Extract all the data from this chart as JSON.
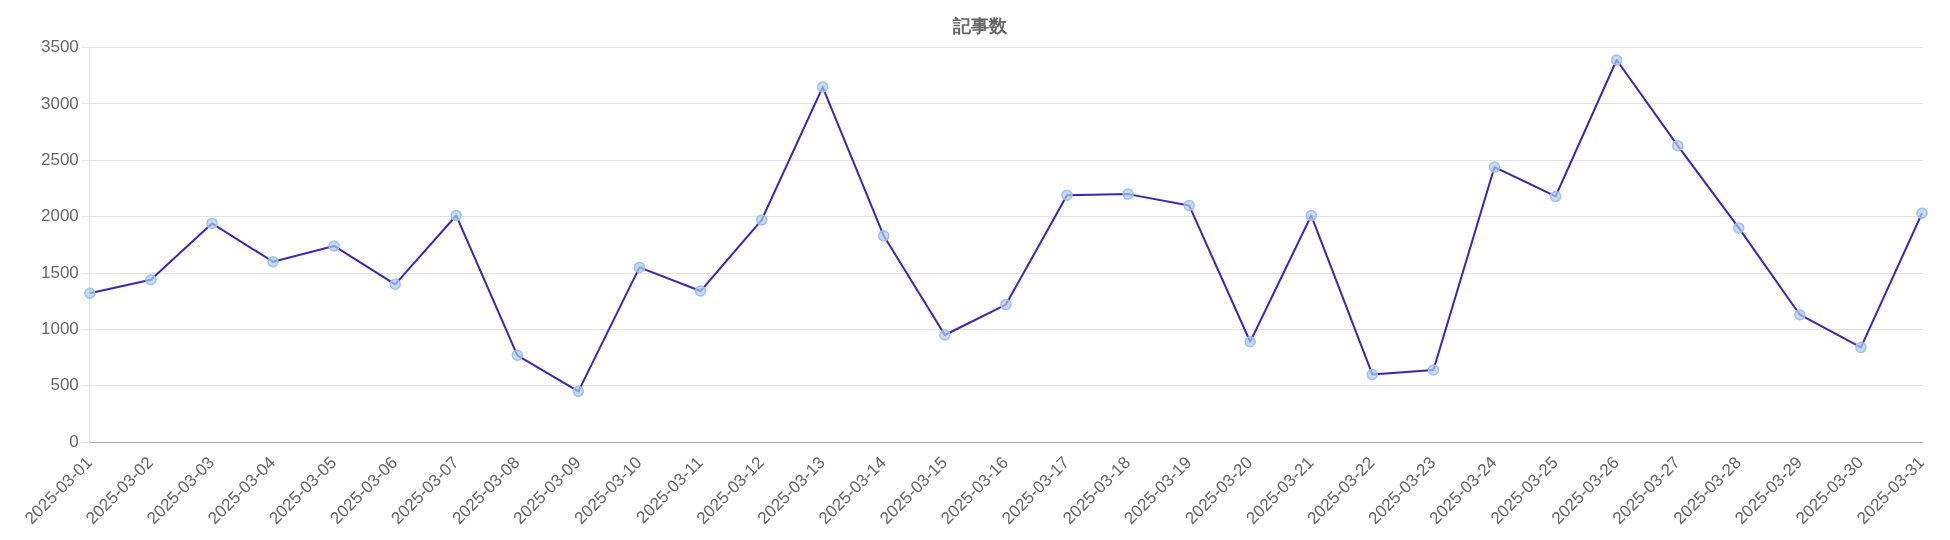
{
  "chart_data": {
    "type": "line",
    "title": "記事数",
    "categories": [
      "2025-03-01",
      "2025-03-02",
      "2025-03-03",
      "2025-03-04",
      "2025-03-05",
      "2025-03-06",
      "2025-03-07",
      "2025-03-08",
      "2025-03-09",
      "2025-03-10",
      "2025-03-11",
      "2025-03-12",
      "2025-03-13",
      "2025-03-14",
      "2025-03-15",
      "2025-03-16",
      "2025-03-17",
      "2025-03-18",
      "2025-03-19",
      "2025-03-20",
      "2025-03-21",
      "2025-03-22",
      "2025-03-23",
      "2025-03-24",
      "2025-03-25",
      "2025-03-26",
      "2025-03-27",
      "2025-03-28",
      "2025-03-29",
      "2025-03-30",
      "2025-03-31"
    ],
    "series": [
      {
        "color": "#3a22cc",
        "values": [
          1320,
          1440,
          1940,
          1600,
          1740,
          1400,
          2010,
          770,
          450,
          1550,
          1340,
          1970,
          3150,
          1830,
          950,
          1220,
          2190,
          2200,
          2100,
          890,
          2010,
          600,
          640,
          2440,
          2180,
          3390,
          2630,
          1900,
          1130,
          840,
          2030
        ]
      }
    ],
    "ylim": [
      0,
      3500
    ],
    "yticks": [
      0,
      500,
      1000,
      1500,
      2000,
      2500,
      3000,
      3500
    ],
    "grid": "y",
    "legend": false,
    "marker": "circle",
    "line_style": "solid"
  }
}
